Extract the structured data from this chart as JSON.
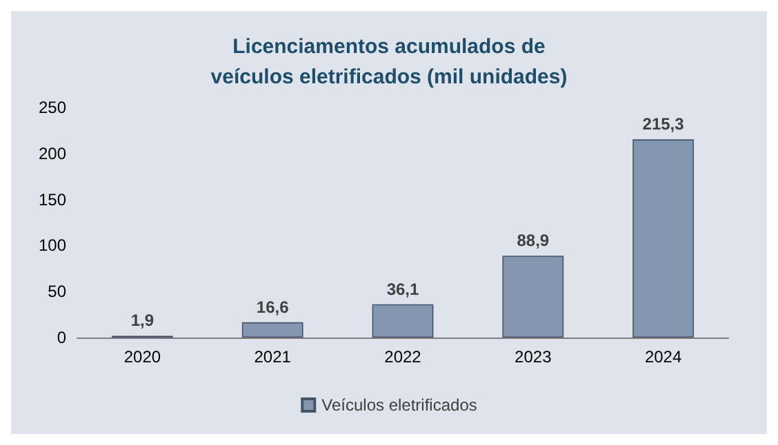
{
  "chart_data": {
    "type": "bar",
    "title": "Licenciamentos acumulados de\nveículos eletrificados (mil unidades)",
    "categories": [
      "2020",
      "2021",
      "2022",
      "2023",
      "2024"
    ],
    "series": [
      {
        "name": "Veículos eletrificados",
        "color": "#8497b0",
        "values": [
          1.9,
          16.6,
          36.1,
          88.9,
          215.3
        ],
        "value_labels": [
          "1,9",
          "16,6",
          "36,1",
          "88,9",
          "215,3"
        ]
      }
    ],
    "ylim": [
      0,
      250
    ],
    "yticks": [
      0,
      50,
      100,
      150,
      200,
      250
    ],
    "grid": false,
    "legend": "bottom"
  }
}
